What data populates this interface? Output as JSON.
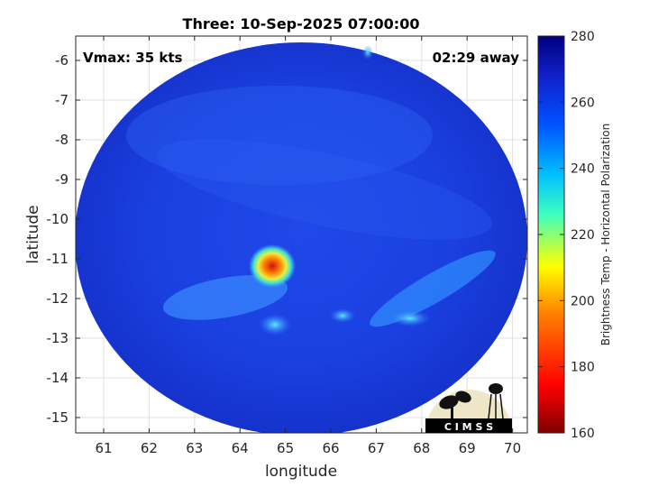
{
  "title": "Three: 10-Sep-2025 07:00:00",
  "vmax_label": "Vmax: 35 kts",
  "time_label": "02:29 away",
  "xlabel": "longitude",
  "ylabel": "latitude",
  "x_ticks": [
    "61",
    "62",
    "63",
    "64",
    "65",
    "66",
    "67",
    "68",
    "69",
    "70"
  ],
  "y_ticks": [
    "-6",
    "-7",
    "-8",
    "-9",
    "-10",
    "-11",
    "-12",
    "-13",
    "-14",
    "-15"
  ],
  "colorbar": {
    "label": "Brightness Temp - Horizontal Polarization",
    "ticks": [
      "280",
      "260",
      "240",
      "220",
      "200",
      "180",
      "160"
    ],
    "range": [
      160,
      280
    ]
  },
  "logo_text": "C I M S S",
  "colors": {
    "background_field": "#1a3ddc",
    "warm_core": "#e0281a",
    "colormap": [
      "#7f0000",
      "#ff0000",
      "#ffff00",
      "#00ffff",
      "#0000ff",
      "#00007f"
    ]
  }
}
